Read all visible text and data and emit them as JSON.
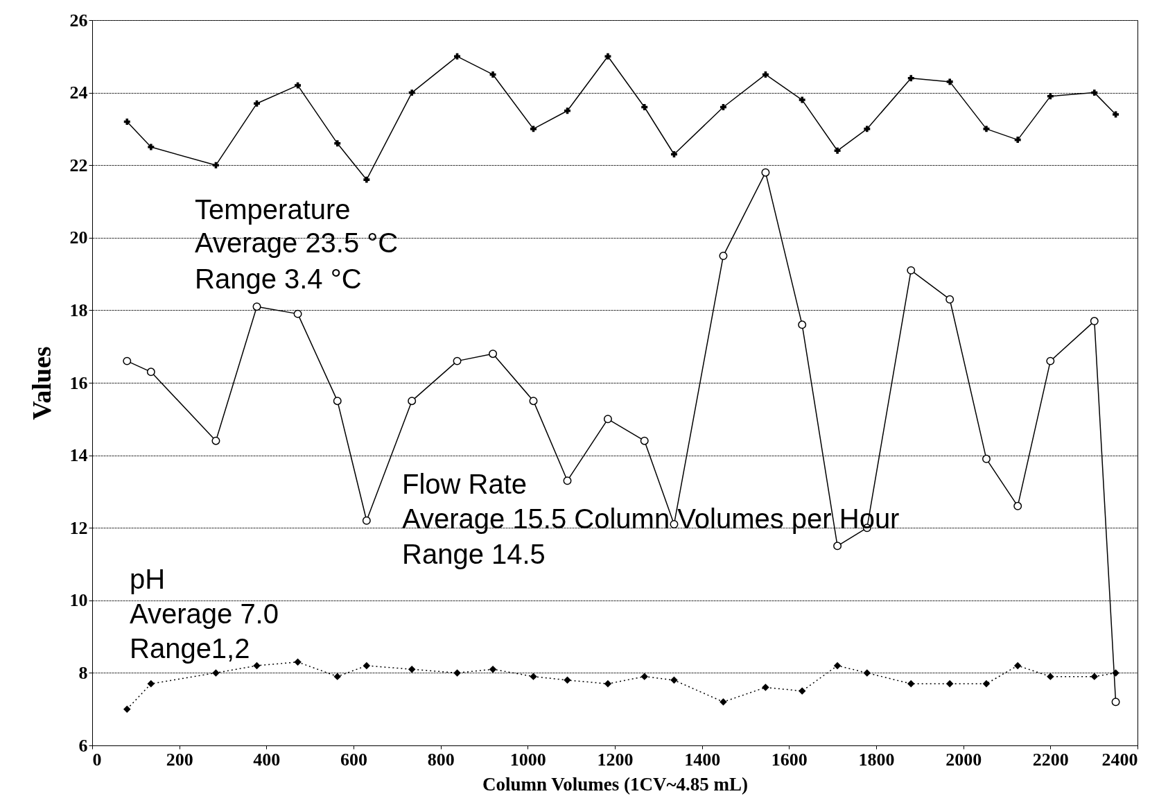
{
  "chart_data": {
    "type": "line",
    "xlabel": "Column Volumes (1CV~4.85 mL)",
    "ylabel": "Values",
    "x": [
      80,
      135,
      284,
      378,
      472,
      563,
      630,
      734,
      838,
      920,
      1013,
      1091,
      1184,
      1268,
      1336,
      1449,
      1546,
      1630,
      1711,
      1779,
      1880,
      1969,
      2053,
      2125,
      2200,
      2301,
      2350
    ],
    "series": [
      {
        "color": "#000000",
        "marker": "cross",
        "line_style": "solid",
        "values": [
          23.2,
          22.5,
          22.0,
          23.7,
          24.2,
          22.6,
          21.6,
          24.0,
          25.0,
          24.5,
          23.0,
          23.5,
          25.0,
          23.6,
          22.3,
          23.6,
          24.5,
          23.8,
          22.4,
          23.0,
          24.4,
          24.3,
          23.0,
          22.7,
          23.9,
          24.0,
          23.4
        ]
      },
      {
        "color": "#000000",
        "marker": "circle",
        "line_style": "solid",
        "values": [
          16.6,
          16.3,
          14.4,
          18.1,
          17.9,
          15.5,
          12.2,
          15.5,
          16.6,
          16.8,
          15.5,
          13.3,
          15.0,
          14.4,
          12.1,
          19.5,
          21.8,
          17.6,
          11.5,
          12.0,
          19.1,
          18.3,
          13.9,
          12.6,
          16.6,
          17.7,
          7.2
        ]
      },
      {
        "color": "#000000",
        "marker": "diamond",
        "line_style": "dotted",
        "values": [
          7.0,
          7.7,
          8.0,
          8.2,
          8.3,
          7.9,
          8.2,
          8.1,
          8.0,
          8.1,
          7.9,
          7.8,
          7.7,
          7.9,
          7.8,
          7.2,
          7.6,
          7.5,
          8.2,
          8.0,
          7.7,
          7.7,
          7.7,
          8.2,
          7.9,
          7.9,
          8.0
        ]
      }
    ],
    "xlim": [
      0,
      2400
    ],
    "xticks": [
      0,
      200,
      400,
      600,
      800,
      1000,
      1200,
      1400,
      1600,
      1800,
      2000,
      2200,
      2400
    ],
    "ylim": [
      6,
      26
    ],
    "yticks": [
      6,
      8,
      10,
      12,
      14,
      16,
      18,
      20,
      22,
      24,
      26
    ],
    "grid": "y",
    "annotations": [
      "Temperature",
      "Average  23.5  °C",
      "Range  3.4 °C",
      "Flow Rate",
      "Average  15.5    Column Volumes per Hour",
      "Range 14.5",
      "pH",
      "Average 7.0",
      "Range1,2"
    ]
  }
}
